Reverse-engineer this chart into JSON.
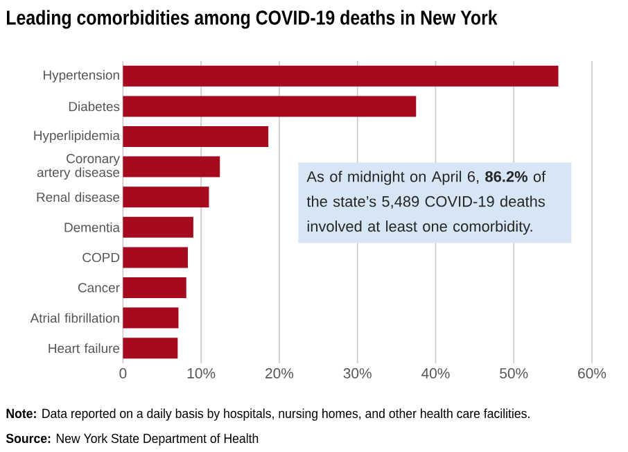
{
  "chart_data": {
    "type": "bar",
    "orientation": "horizontal",
    "title": "Leading comorbidities among COVID-19 deaths in New York",
    "categories": [
      "Hypertension",
      "Diabetes",
      "Hyperlipidemia",
      "Coronary artery disease",
      "Renal disease",
      "Dementia",
      "COPD",
      "Cancer",
      "Atrial fibrillation",
      "Heart failure"
    ],
    "values": [
      55.7,
      37.5,
      18.6,
      12.4,
      11.0,
      9.0,
      8.3,
      8.1,
      7.1,
      7.0
    ],
    "color": "#a50a1e",
    "xlim": [
      0,
      60
    ],
    "xticks": [
      0,
      {
        "value": 10,
        "label": "10%"
      },
      {
        "value": 20,
        "label": "20%"
      },
      {
        "value": 30,
        "label": "30%"
      },
      {
        "value": 40,
        "label": "40%"
      },
      {
        "value": 50,
        "label": "50%"
      },
      {
        "value": 60,
        "label": "60%"
      }
    ],
    "grid": "x",
    "annotations": [
      "As of midnight on April 6, **86.2%** of the state’s 5,489 COVID-19 deaths involved at least one comorbidity.",
      "**Note:** Data reported on a daily basis by hospitals, nursing homes, and other health care facilities.",
      "**Source:** New York State Department of Health"
    ]
  }
}
